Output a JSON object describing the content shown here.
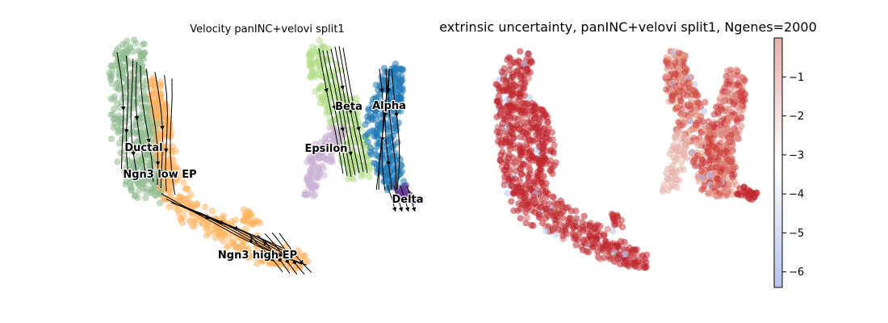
{
  "chart_data": [
    {
      "type": "scatter",
      "title": "Velocity panINC+velovi split1",
      "colors": {
        "Ductal": "#8fbc8f",
        "Ngn3 low EP": "#8fbc8f",
        "Ngn3 high EP": "#fdb462",
        "Beta": "#b2df8a",
        "Alpha": "#1f78b4",
        "Epsilon": "#cab2d6",
        "Delta": "#6a3d9a"
      },
      "cluster_labels": [
        "Ductal",
        "Ngn3 low EP",
        "Ngn3 high EP",
        "Epsilon",
        "Beta",
        "Alpha",
        "Delta"
      ],
      "overlay": "velocity streamlines with arrows",
      "axes_visible": false
    },
    {
      "type": "scatter",
      "title": "extrinsic uncertainty, panINC+velovi split1, Ngenes=2000",
      "colorbar": {
        "ticks": [
          "−1",
          "−2",
          "−3",
          "−4",
          "−5",
          "−6"
        ],
        "tick_values": [
          -1,
          -2,
          -3,
          -4,
          -5,
          -6
        ],
        "range": [
          -6.4,
          0
        ],
        "colormap": "coolwarm",
        "low_color": "#b4c4ee",
        "mid_color": "#ffffff",
        "high_color": "#e8b0aa"
      },
      "point_color_main": "#c0282f",
      "axes_visible": false
    }
  ]
}
